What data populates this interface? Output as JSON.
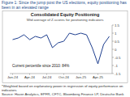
{
  "figure_title": "Figure 1: Since the jump post the US elections, equity positioning has been in an elevated range",
  "footnote": "*Weighted based on explanatory power in regression of equity performance on indicators",
  "source": "Source: Haver Analytics, EPFR, CFTC, Bloomberg Finance LP, Deutsche Bank",
  "chart_data": {
    "type": "line",
    "title": "Consolidated Equity Positioning",
    "subtitle": "Wtd average of Z-scores for positioning indicators",
    "annotation": "Current percentile since 2010: 84%",
    "categories": [
      "Jan-24",
      null,
      null,
      "Apr-24",
      null,
      null,
      "Jul-24",
      null,
      null,
      "Oct-24",
      null,
      null,
      "Jan-25",
      null,
      null,
      "Apr-25",
      null,
      null
    ],
    "series": [
      {
        "name": "Consolidated Equity Positioning",
        "color": "#1f3f8f",
        "values": [
          0.6,
          0.7,
          0.9,
          0.6,
          0.8,
          0.7,
          0.9,
          0.1,
          0.4,
          0.5,
          1.0,
          0.9,
          1.0,
          0.9,
          0.1,
          -0.9,
          0.3,
          0.8
        ]
      }
    ],
    "ylim": [
      -1.5,
      1.5
    ],
    "yticks": [
      -1.5,
      -1,
      -0.5,
      0,
      0.5,
      1,
      1.5
    ],
    "grid": false
  }
}
